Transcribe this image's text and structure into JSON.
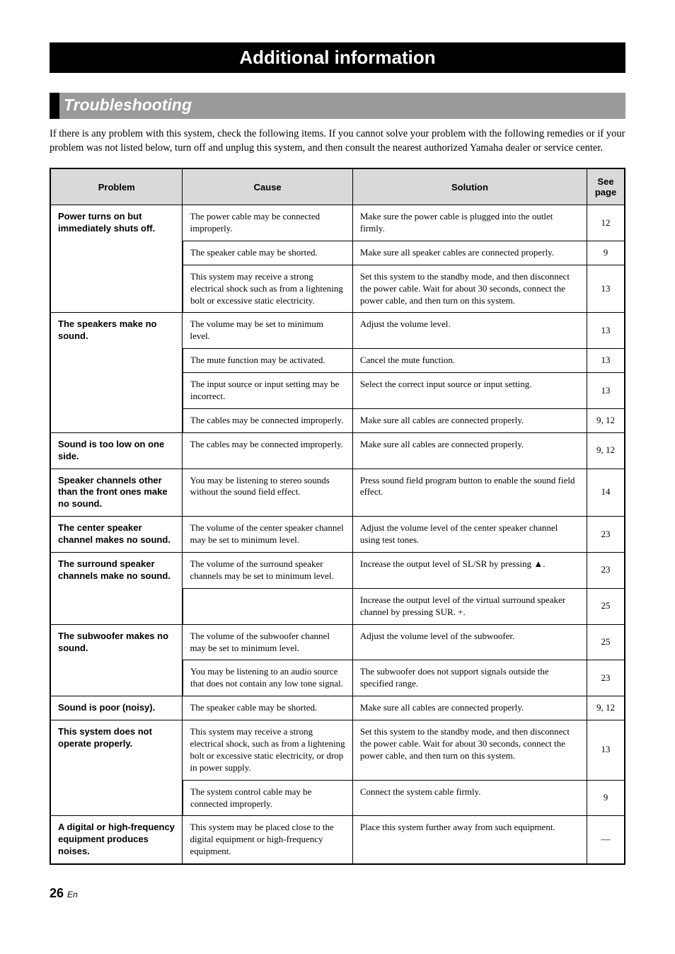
{
  "banner": "Additional information",
  "subheading": "Troubleshooting",
  "intro": "If there is any problem with this system, check the following items. If you cannot solve your problem with the following remedies or if your problem was not listed below, turn off and unplug this system, and then consult the nearest authorized Yamaha dealer or service center.",
  "headers": {
    "problem": "Problem",
    "cause": "Cause",
    "solution": "Solution",
    "page": "See page"
  },
  "rows": [
    {
      "group": true,
      "problem": "Power turns on but immediately shuts off.",
      "cause": "The power cable may be connected improperly.",
      "solution": "Make sure the power cable is plugged into the outlet firmly.",
      "page": "12"
    },
    {
      "cause": "The speaker cable may be shorted.",
      "solution": "Make sure all speaker cables are connected properly.",
      "page": "9"
    },
    {
      "cause": "This system may receive a strong electrical shock such as from a lightening bolt or excessive static electricity.",
      "solution": "Set this system to the standby mode, and then disconnect the power cable. Wait for about 30 seconds, connect the power cable, and then turn on this system.",
      "page": "13"
    },
    {
      "group": true,
      "problem": "The speakers make no sound.",
      "cause": "The volume may be set to minimum level.",
      "solution": "Adjust the volume level.",
      "page": "13"
    },
    {
      "cause": "The mute function may be activated.",
      "solution": "Cancel the mute function.",
      "page": "13"
    },
    {
      "cause": "The input source or input setting may be incorrect.",
      "solution": "Select the correct input source or input setting.",
      "page": "13"
    },
    {
      "cause": "The cables may be connected improperly.",
      "solution": "Make sure all cables are connected properly.",
      "page": "9, 12"
    },
    {
      "group": true,
      "problem": "Sound is too low on one side.",
      "cause": "The cables may be connected improperly.",
      "solution": "Make sure all cables are connected properly.",
      "page": "9, 12"
    },
    {
      "group": true,
      "problem": "Speaker channels other than the front ones make no sound.",
      "cause": "You may be listening to stereo sounds without the sound field effect.",
      "solution": "Press sound field program button to enable the sound field effect.",
      "page": "14"
    },
    {
      "group": true,
      "problem": "The center speaker channel makes no sound.",
      "cause": "The volume of the center speaker channel may be set to minimum level.",
      "solution": "Adjust the volume level of the center speaker channel using test tones.",
      "page": "23"
    },
    {
      "group": true,
      "problem": "The surround speaker channels make no sound.",
      "cause": "The volume of the surround speaker channels may be set to minimum level.",
      "solution_html": "Increase the output level of SL/SR by pressing <span class='tri'>▲</span>.",
      "page": "23"
    },
    {
      "solution": "Increase the output level of the virtual surround speaker channel by pressing SUR. +.",
      "page": "25"
    },
    {
      "group": true,
      "problem": "The subwoofer makes no sound.",
      "cause": "The volume of the subwoofer channel may be set to minimum level.",
      "solution": "Adjust the volume level of the subwoofer.",
      "page": "25"
    },
    {
      "cause": "You may be listening to an audio source that does not contain any low tone signal.",
      "solution": "The subwoofer does not support signals outside the specified range.",
      "page": "23"
    },
    {
      "group": true,
      "problem": "Sound is poor (noisy).",
      "cause": "The speaker cable may be shorted.",
      "solution": "Make sure all cables are connected properly.",
      "page": "9, 12"
    },
    {
      "group": true,
      "problem": "This system does not operate properly.",
      "cause": "This system may receive a strong electrical shock, such as from a lightening bolt or excessive static electricity, or drop in power supply.",
      "solution": "Set this system to the standby mode, and then disconnect the power cable. Wait for about 30 seconds, connect the power cable, and then turn on this system.",
      "page": "13"
    },
    {
      "cause": "The system control cable may be connected improperly.",
      "solution": "Connect the system cable firmly.",
      "page": "9"
    },
    {
      "group": true,
      "last": true,
      "problem": "A digital or high-frequency equipment produces noises.",
      "cause": "This system may be placed close to the digital equipment or high-frequency equipment.",
      "solution": "Place this system further away from such equipment.",
      "page": "—"
    }
  ],
  "footer": {
    "num": "26",
    "suffix": "En"
  }
}
